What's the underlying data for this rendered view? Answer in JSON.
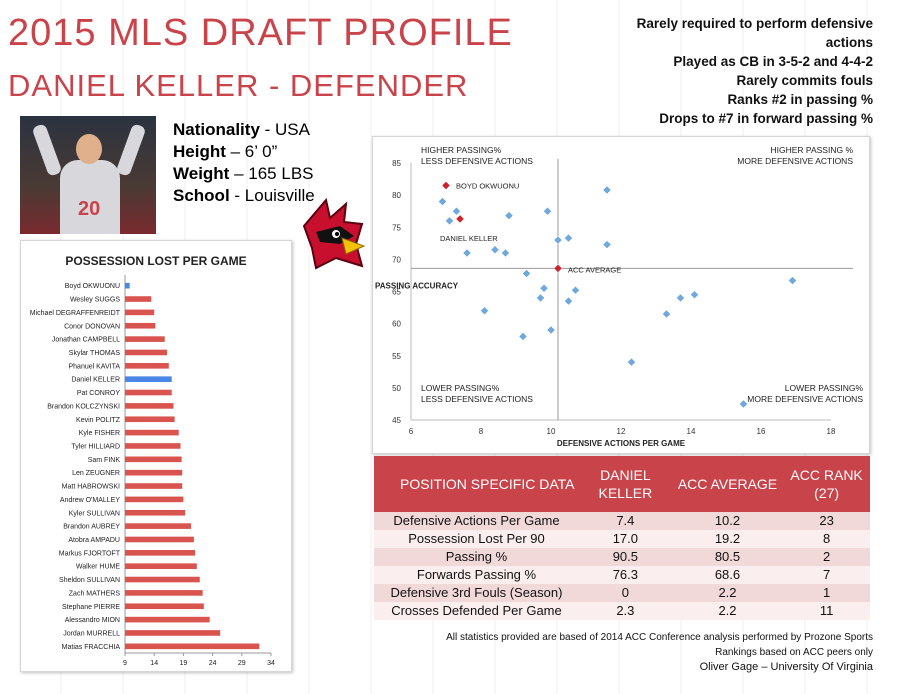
{
  "header": {
    "title": "2015 MLS DRAFT PROFILE",
    "subtitle": "DANIEL KELLER - DEFENDER",
    "notes": [
      "Rarely required to perform defensive",
      "actions",
      "Played as CB in 3-5-2 and 4-4-2",
      "Rarely commits fouls",
      "Ranks #2 in passing %",
      "Drops to #7 in forward passing %"
    ]
  },
  "bio": {
    "nationality_label": "Nationality",
    "nationality": "- USA",
    "height_label": "Height",
    "height": "– 6’ 0”",
    "weight_label": "Weight",
    "weight": "– 165 LBS",
    "school_label": "School",
    "school": "- Louisville"
  },
  "photo": {
    "jersey_number": "20"
  },
  "logo": {
    "name": "cardinal-bird-icon"
  },
  "colors": {
    "accent": "#c9434a",
    "highlight_bar": "#4a86e8",
    "bar": "#d9534f",
    "scatter_point": "#6fa8dc",
    "scatter_highlight": "#cc2229",
    "table_odd": "#f2d9d9",
    "table_even": "#fbeeee"
  },
  "chart_data": [
    {
      "type": "bar",
      "orientation": "horizontal",
      "title": "POSSESSION LOST PER GAME",
      "categories": [
        "Boyd OKWUONU",
        "Wesley SUGGS",
        "Michael DEGRAFFENREIDT",
        "Conor DONOVAN",
        "Jonathan CAMPBELL",
        "Skylar THOMAS",
        "Phanuel KAVITA",
        "Daniel KELLER",
        "Pat CONROY",
        "Brandon KOLCZYNSKI",
        "Kevin POLITZ",
        "Kyle FISHER",
        "Tyler HILLIARD",
        "Sam FINK",
        "Len ZEUGNER",
        "Matt HABROWSKI",
        "Andrew O'MALLEY",
        "Kyler SULLIVAN",
        "Brandon AUBREY",
        "Atobra AMPADU",
        "Markus FJORTOFT",
        "Walker HUME",
        "Sheldon SULLIVAN",
        "Zach MATHERS",
        "Stephane PIERRE",
        "Alessandro MION",
        "Jordan MURRELL",
        "Matias FRACCHIA"
      ],
      "values": [
        9.8,
        13.5,
        14.0,
        14.2,
        15.8,
        16.2,
        16.5,
        17.0,
        17.0,
        17.3,
        17.5,
        18.2,
        18.5,
        18.7,
        18.8,
        18.8,
        19.0,
        19.3,
        20.3,
        20.8,
        21.0,
        21.3,
        21.8,
        22.3,
        22.5,
        23.5,
        25.3,
        32.0
      ],
      "highlight": [
        "Boyd OKWUONU",
        "Daniel KELLER"
      ],
      "xticks": [
        9,
        14,
        19,
        24,
        29,
        34
      ],
      "xlim": [
        9,
        34
      ]
    },
    {
      "type": "scatter",
      "xlabel": "DEFENSIVE ACTIONS PER GAME",
      "ylabel": "PASSING ACCURACY",
      "xlim": [
        6,
        18
      ],
      "ylim": [
        45,
        85
      ],
      "xticks": [
        6,
        8,
        10,
        12,
        14,
        16,
        18
      ],
      "yticks": [
        45,
        50,
        55,
        60,
        65,
        70,
        75,
        80,
        85
      ],
      "quadrants": {
        "top_left": [
          "HIGHER PASSING%",
          "LESS DEFENSIVE ACTIONS"
        ],
        "top_right": [
          "HIGHER PASSING %",
          "MORE DEFENSIVE ACTIONS"
        ],
        "bottom_left": [
          "LOWER PASSING%",
          "LESS DEFENSIVE ACTIONS"
        ],
        "bottom_right": [
          "LOWER PASSING%",
          "MORE DEFENSIVE ACTIONS"
        ]
      },
      "reference": {
        "x": 10.2,
        "y": 68.6
      },
      "highlighted_points": [
        {
          "label": "BOYD OKWUONU",
          "x": 7.0,
          "y": 81.5
        },
        {
          "label": "DANIEL KELLER",
          "x": 7.4,
          "y": 76.3
        },
        {
          "label": "ACC AVERAGE",
          "x": 10.2,
          "y": 68.6
        }
      ],
      "points": [
        {
          "x": 6.9,
          "y": 79.0
        },
        {
          "x": 7.1,
          "y": 76.0
        },
        {
          "x": 7.3,
          "y": 77.5
        },
        {
          "x": 7.6,
          "y": 71.0
        },
        {
          "x": 8.1,
          "y": 62.0
        },
        {
          "x": 8.4,
          "y": 71.5
        },
        {
          "x": 8.7,
          "y": 71.0
        },
        {
          "x": 8.8,
          "y": 76.8
        },
        {
          "x": 9.2,
          "y": 58.0
        },
        {
          "x": 9.3,
          "y": 67.8
        },
        {
          "x": 9.7,
          "y": 64.0
        },
        {
          "x": 9.8,
          "y": 65.5
        },
        {
          "x": 9.9,
          "y": 77.5
        },
        {
          "x": 10.0,
          "y": 59.0
        },
        {
          "x": 10.2,
          "y": 73.0
        },
        {
          "x": 10.5,
          "y": 73.3
        },
        {
          "x": 10.5,
          "y": 63.5
        },
        {
          "x": 10.7,
          "y": 65.2
        },
        {
          "x": 11.6,
          "y": 80.8
        },
        {
          "x": 11.6,
          "y": 72.3
        },
        {
          "x": 12.3,
          "y": 54.0
        },
        {
          "x": 13.3,
          "y": 61.5
        },
        {
          "x": 13.7,
          "y": 64.0
        },
        {
          "x": 14.1,
          "y": 64.5
        },
        {
          "x": 15.5,
          "y": 47.5
        },
        {
          "x": 16.9,
          "y": 66.7
        }
      ]
    }
  ],
  "table": {
    "headers": [
      "POSITION SPECIFIC DATA",
      "DANIEL KELLER",
      "ACC AVERAGE",
      "ACC RANK (27)"
    ],
    "rows": [
      {
        "label": "Defensive Actions Per Game",
        "keller": "7.4",
        "avg": "10.2",
        "rank": "23"
      },
      {
        "label": "Possession Lost Per 90",
        "keller": "17.0",
        "avg": "19.2",
        "rank": "8"
      },
      {
        "label": "Passing %",
        "keller": "90.5",
        "avg": "80.5",
        "rank": "2"
      },
      {
        "label": "Forwards Passing %",
        "keller": "76.3",
        "avg": "68.6",
        "rank": "7"
      },
      {
        "label": "Defensive 3rd Fouls (Season)",
        "keller": "0",
        "avg": "2.2",
        "rank": "1"
      },
      {
        "label": "Crosses Defended Per Game",
        "keller": "2.3",
        "avg": "2.2",
        "rank": "11"
      }
    ]
  },
  "footer": {
    "line1": "All statistics provided are based of 2014 ACC Conference analysis performed by Prozone Sports",
    "line2": "Rankings based on ACC peers only",
    "line3": "Oliver Gage – University Of Virginia"
  }
}
